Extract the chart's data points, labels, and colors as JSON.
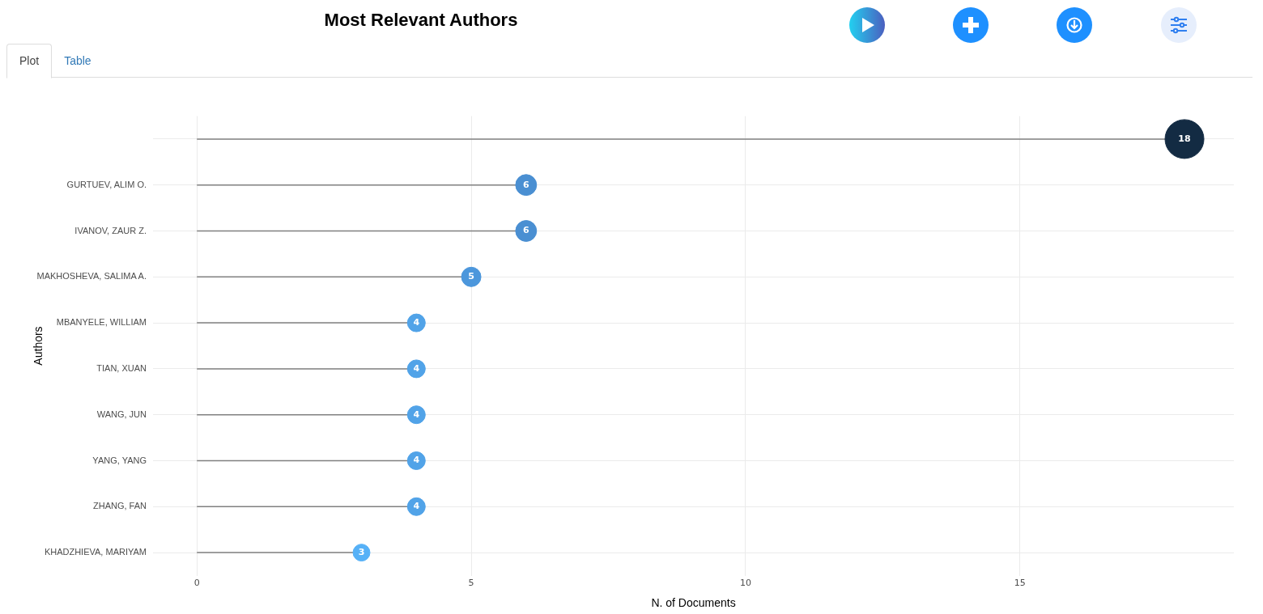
{
  "chart_data": {
    "type": "lollipop",
    "title": "Most Relevant Authors",
    "xlabel": "N. of Documents",
    "ylabel": "Authors",
    "annotations": [
      "Plot",
      "Table"
    ],
    "orientation": "horizontal",
    "categories": [
      null,
      "GURTUEV, ALIM O.",
      "IVANOV, ZAUR Z.",
      "MAKHOSHEVA, SALIMA A.",
      "MBANYELE, WILLIAM",
      "TIAN, XUAN",
      "WANG, JUN",
      "YANG, YANG",
      "ZHANG, FAN",
      "KHADZHIEVA, MARIYAM"
    ],
    "values": [
      18,
      6,
      6,
      5,
      4,
      4,
      4,
      4,
      4,
      3
    ],
    "sizes": [
      1,
      0.29,
      0.29,
      0.25,
      0.21,
      0.21,
      0.21,
      0.21,
      0.21,
      0.19
    ],
    "colors": [
      "#132b43",
      "#4a8fd2",
      "#4a8fd2",
      "#4c97dc",
      "#51a3e8",
      "#51a3e8",
      "#51a3e8",
      "#51a3e8",
      "#51a3e8",
      "#56b1f7"
    ],
    "xlim": [
      -0.8,
      18.9
    ],
    "xticks": [
      0,
      5,
      10,
      15
    ],
    "grid": true,
    "legend": false,
    "data_labels": true,
    "marker": "circle"
  }
}
